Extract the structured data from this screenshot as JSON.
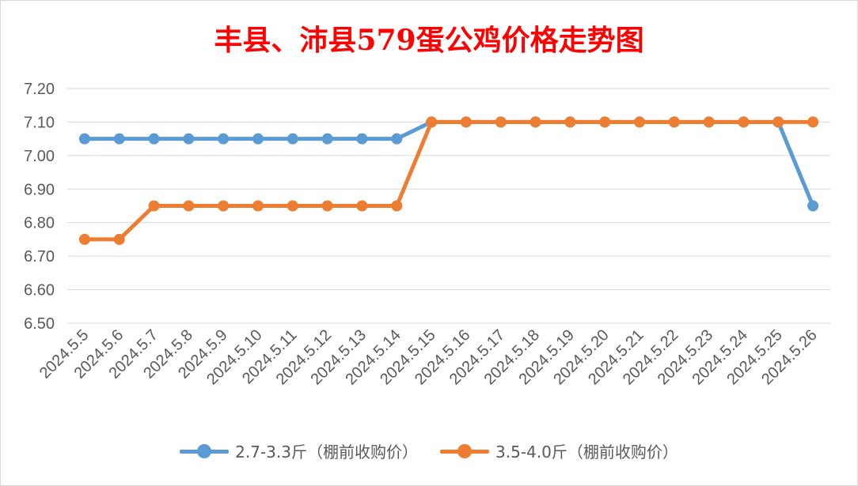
{
  "chart_data": {
    "type": "line",
    "title": "丰县、沛县579蛋公鸡价格走势图",
    "categories": [
      "2024.5.5",
      "2024.5.6",
      "2024.5.7",
      "2024.5.8",
      "2024.5.9",
      "2024.5.10",
      "2024.5.11",
      "2024.5.12",
      "2024.5.13",
      "2024.5.14",
      "2024.5.15",
      "2024.5.16",
      "2024.5.17",
      "2024.5.18",
      "2024.5.19",
      "2024.5.20",
      "2024.5.21",
      "2024.5.22",
      "2024.5.23",
      "2024.5.24",
      "2024.5.25",
      "2024.5.26"
    ],
    "series": [
      {
        "name": "2.7-3.3斤（棚前收购价）",
        "color": "#5b9bd5",
        "values": [
          7.05,
          7.05,
          7.05,
          7.05,
          7.05,
          7.05,
          7.05,
          7.05,
          7.05,
          7.05,
          7.1,
          7.1,
          7.1,
          7.1,
          7.1,
          7.1,
          7.1,
          7.1,
          7.1,
          7.1,
          7.1,
          6.85
        ]
      },
      {
        "name": "3.5-4.0斤（棚前收购价）",
        "color": "#ed7d31",
        "values": [
          6.75,
          6.75,
          6.85,
          6.85,
          6.85,
          6.85,
          6.85,
          6.85,
          6.85,
          6.85,
          7.1,
          7.1,
          7.1,
          7.1,
          7.1,
          7.1,
          7.1,
          7.1,
          7.1,
          7.1,
          7.1,
          7.1
        ]
      }
    ],
    "ylim": [
      6.5,
      7.2
    ],
    "yticks": [
      "6.50",
      "6.60",
      "6.70",
      "6.80",
      "6.90",
      "7.00",
      "7.10",
      "7.20"
    ],
    "xlabel": "",
    "ylabel": "",
    "grid": true,
    "legend_position": "bottom",
    "title_color": "#ff0000"
  }
}
